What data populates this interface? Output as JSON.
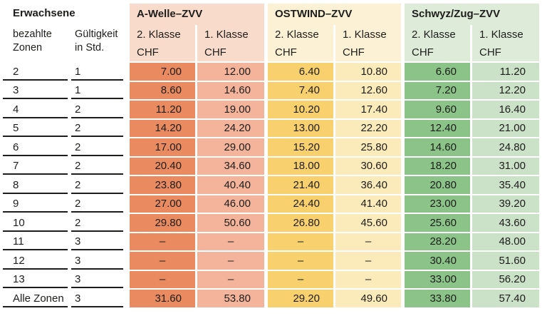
{
  "page": {
    "background": "#ffffff",
    "text_color": "#1d1d1b",
    "empty_marker": "–"
  },
  "header": {
    "audience_label": "Erwachsene",
    "zones_column_label": "bezahlte Zonen",
    "validity_column_label": "Gültigkeit in Std."
  },
  "sections": [
    {
      "title": "A-Welle–ZVV",
      "class2_label": "2. Klasse",
      "class1_label": "1. Klasse",
      "currency_label": "CHF",
      "header_bg": "#f9dbcb",
      "class2_bg": "#e98a60",
      "class1_bg": "#f4b49c"
    },
    {
      "title": "OSTWIND–ZVV",
      "class2_label": "2. Klasse",
      "class1_label": "1. Klasse",
      "currency_label": "CHF",
      "header_bg": "#fcf1d4",
      "class2_bg": "#f8d06e",
      "class1_bg": "#fcebba"
    },
    {
      "title": "Schwyz/Zug–ZVV",
      "class2_label": "2. Klasse",
      "class1_label": "1. Klasse",
      "currency_label": "CHF",
      "header_bg": "#deebd9",
      "class2_bg": "#8bc389",
      "class1_bg": "#cbe1c8"
    }
  ],
  "rows": [
    {
      "zones": "2",
      "validity": "1",
      "values": [
        "7.00",
        "12.00",
        "6.40",
        "10.80",
        "6.60",
        "11.20"
      ]
    },
    {
      "zones": "3",
      "validity": "1",
      "values": [
        "8.60",
        "14.60",
        "7.40",
        "12.60",
        "7.20",
        "12.20"
      ]
    },
    {
      "zones": "4",
      "validity": "2",
      "values": [
        "11.20",
        "19.00",
        "10.20",
        "17.40",
        "9.60",
        "16.40"
      ]
    },
    {
      "zones": "5",
      "validity": "2",
      "values": [
        "14.20",
        "24.20",
        "13.00",
        "22.20",
        "12.40",
        "21.00"
      ]
    },
    {
      "zones": "6",
      "validity": "2",
      "values": [
        "17.00",
        "29.00",
        "15.20",
        "25.80",
        "14.60",
        "24.80"
      ]
    },
    {
      "zones": "7",
      "validity": "2",
      "values": [
        "20.40",
        "34.60",
        "18.00",
        "30.60",
        "18.20",
        "31.00"
      ]
    },
    {
      "zones": "8",
      "validity": "2",
      "values": [
        "23.80",
        "40.40",
        "21.40",
        "36.40",
        "20.80",
        "35.40"
      ]
    },
    {
      "zones": "9",
      "validity": "2",
      "values": [
        "27.00",
        "46.00",
        "24.40",
        "41.40",
        "23.00",
        "39.20"
      ]
    },
    {
      "zones": "10",
      "validity": "2",
      "values": [
        "29.80",
        "50.60",
        "26.80",
        "45.60",
        "25.60",
        "43.60"
      ]
    },
    {
      "zones": "11",
      "validity": "3",
      "values": [
        "–",
        "–",
        "–",
        "–",
        "28.20",
        "48.00"
      ]
    },
    {
      "zones": "12",
      "validity": "3",
      "values": [
        "–",
        "–",
        "–",
        "–",
        "30.40",
        "51.60"
      ]
    },
    {
      "zones": "13",
      "validity": "3",
      "values": [
        "–",
        "–",
        "–",
        "–",
        "33.00",
        "56.20"
      ]
    },
    {
      "zones": "Alle Zonen",
      "validity": "3",
      "values": [
        "31.60",
        "53.80",
        "29.20",
        "49.60",
        "33.80",
        "57.40"
      ]
    }
  ]
}
